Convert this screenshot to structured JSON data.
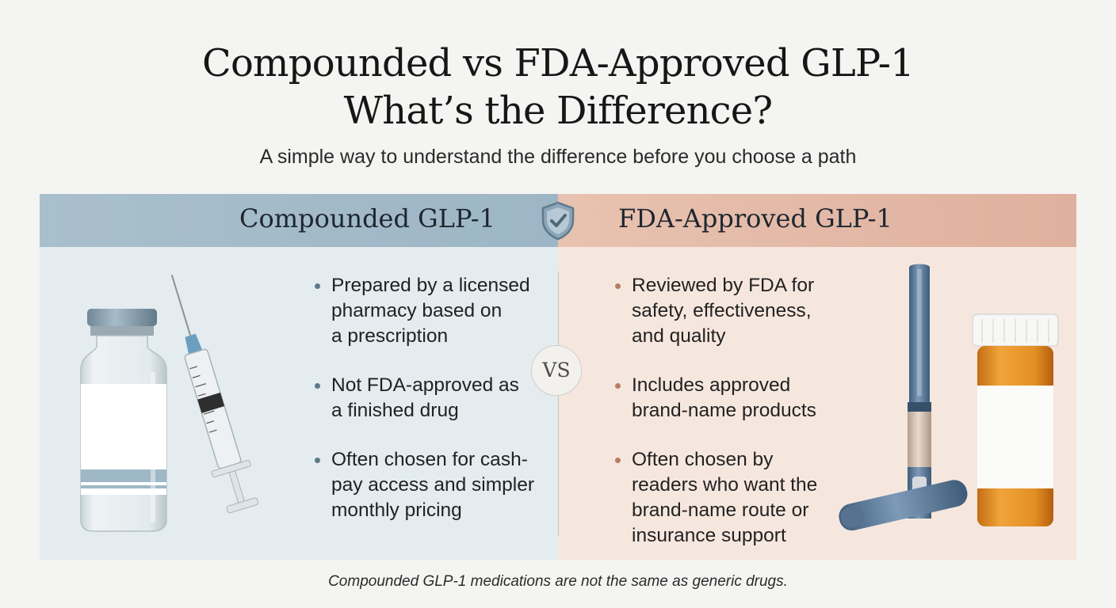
{
  "title_lines": [
    "Compounded vs FDA-Approved GLP-1",
    "What’s the Difference?"
  ],
  "subtitle": "A simple way to understand the difference before you choose a path",
  "left": {
    "heading": "Compounded GLP-1",
    "bullets": [
      [
        "Prepared by a licensed",
        "pharmacy based on",
        "a prescription"
      ],
      [
        "Not FDA-approved as",
        "a finished drug"
      ],
      [
        "Often chosen for cash-",
        "pay access and simpler",
        "monthly pricing"
      ]
    ]
  },
  "right": {
    "heading": "FDA-Approved GLP-1",
    "bullets": [
      [
        "Reviewed by FDA for",
        "safety, effectiveness,",
        "and quality"
      ],
      [
        "Includes approved",
        "brand-name products"
      ],
      [
        "Often chosen by",
        "readers who want the",
        "brand-name route or",
        "insurance support"
      ]
    ]
  },
  "vs_label": "VS",
  "footnote": "Compounded GLP-1 medications are not the same as generic drugs.",
  "icons": {
    "center": "shield-check-icon",
    "left_images": [
      "vial-icon",
      "syringe-icon"
    ],
    "right_images": [
      "injection-pen-icon",
      "pill-bottle-icon"
    ]
  },
  "colors": {
    "left_header": "#a9bfcc",
    "left_panel": "#e4ecef",
    "right_header": "#e3b8a5",
    "right_panel": "#f6e7de"
  }
}
